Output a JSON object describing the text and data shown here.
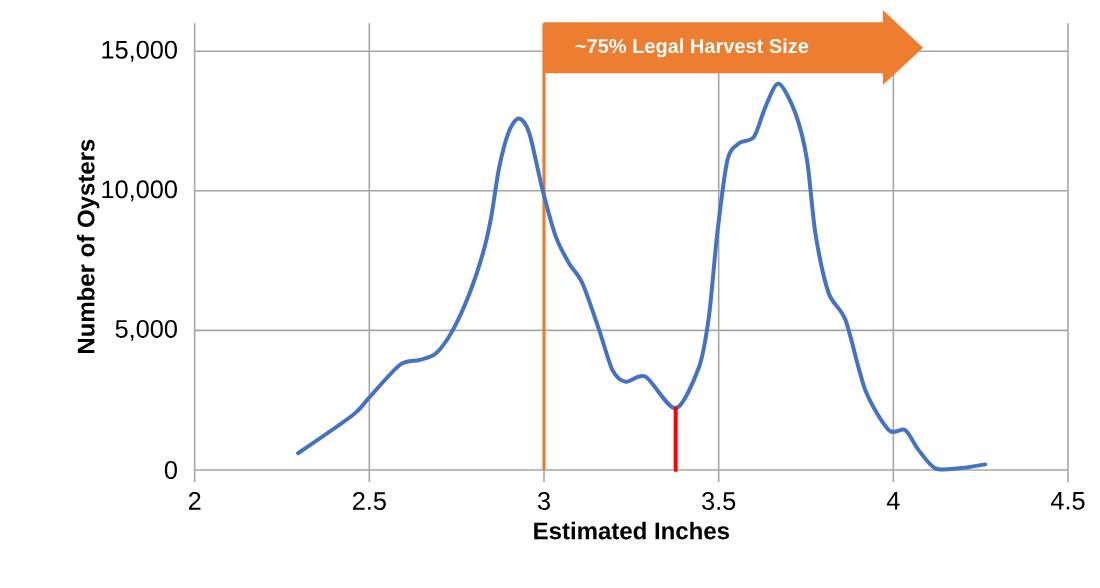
{
  "chart_data": {
    "type": "line",
    "xlabel": "Estimated Inches",
    "ylabel": "Number of Oysters",
    "xlim": [
      2,
      4.5
    ],
    "ylim": [
      0,
      16000
    ],
    "xticks": [
      2,
      2.5,
      3,
      3.5,
      4,
      4.5
    ],
    "yticks": [
      {
        "value": 0,
        "label": "0"
      },
      {
        "value": 5000,
        "label": "5,000"
      },
      {
        "value": 10000,
        "label": "10,000"
      },
      {
        "value": 15000,
        "label": "15,000"
      }
    ],
    "grid": true,
    "series": [
      {
        "color": "#4472c4",
        "x": [
          2.296,
          2.453,
          2.498,
          2.587,
          2.644,
          2.691,
          2.739,
          2.787,
          2.825,
          2.849,
          2.872,
          2.901,
          2.929,
          2.958,
          2.996,
          3.034,
          3.072,
          3.11,
          3.158,
          3.196,
          3.234,
          3.291,
          3.377,
          3.444,
          3.472,
          3.496,
          3.525,
          3.558,
          3.601,
          3.634,
          3.672,
          3.72,
          3.753,
          3.777,
          3.815,
          3.863,
          3.92,
          3.987,
          4.034,
          4.072,
          4.12,
          4.187,
          4.263
        ],
        "values": [
          600,
          1970,
          2570,
          3760,
          3940,
          4180,
          5010,
          6330,
          7760,
          9070,
          10860,
          12170,
          12590,
          12060,
          10030,
          8350,
          7400,
          6690,
          5010,
          3580,
          3160,
          3340,
          2210,
          3700,
          5490,
          8470,
          11100,
          11700,
          11930,
          13010,
          13840,
          12770,
          11100,
          8470,
          6330,
          5370,
          2860,
          1430,
          1430,
          720,
          60,
          60,
          200
        ]
      },
      {
        "color": "#ff0000",
        "x": [
          3.377,
          3.377
        ],
        "values": [
          0,
          2210
        ]
      }
    ],
    "ref_lines": [
      {
        "axis": "x",
        "value": 3,
        "label": "~75% Legal Harvest Size",
        "color": "#ed7d31"
      }
    ]
  }
}
